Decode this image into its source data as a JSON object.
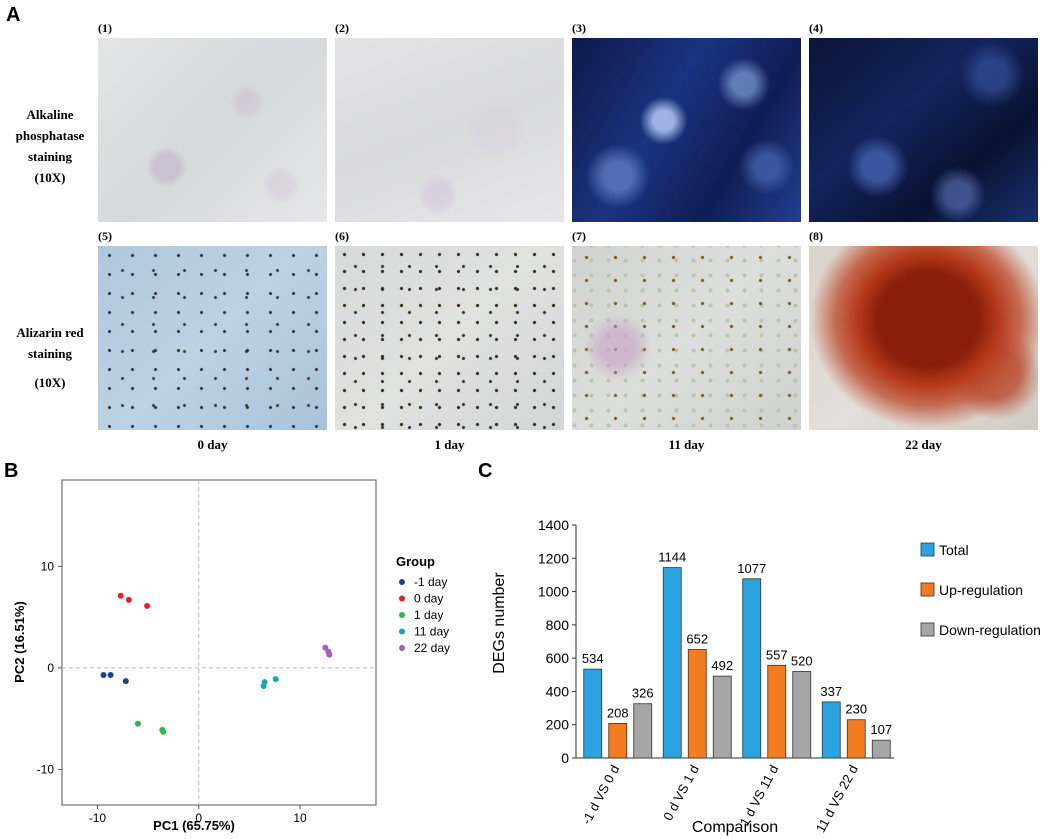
{
  "panel_a": {
    "letter": "A",
    "images": [
      {
        "num": "(1)",
        "stain": "alp",
        "day_index": 0
      },
      {
        "num": "(2)",
        "stain": "alp",
        "day_index": 1
      },
      {
        "num": "(3)",
        "stain": "alp",
        "day_index": 2
      },
      {
        "num": "(4)",
        "stain": "alp",
        "day_index": 3
      },
      {
        "num": "(5)",
        "stain": "ars",
        "day_index": 0
      },
      {
        "num": "(6)",
        "stain": "ars",
        "day_index": 1
      },
      {
        "num": "(7)",
        "stain": "ars",
        "day_index": 2
      },
      {
        "num": "(8)",
        "stain": "ars",
        "day_index": 3
      }
    ],
    "row_labels": [
      {
        "line1": "Alkaline",
        "line2": "phosphatase",
        "line3": "staining",
        "line4": "(10X)"
      },
      {
        "line1": "Alizarin red",
        "line2": "staining",
        "line3": "(10X)"
      }
    ],
    "day_labels": [
      "0 day",
      "1 day",
      "11 day",
      "22 day"
    ]
  },
  "chart_data": [
    {
      "type": "scatter",
      "panel": "B",
      "xlabel": "PC1 (65.75%)",
      "ylabel": "PC2 (16.51%)",
      "xlim": [
        -13.5,
        17.5
      ],
      "ylim": [
        -13.5,
        18.5
      ],
      "xticks": [
        -10,
        0,
        10
      ],
      "yticks": [
        -10,
        0,
        10
      ],
      "reference_lines": {
        "x": 0,
        "y": 0,
        "style": "dashed"
      },
      "legend": {
        "title": "Group",
        "placement": "right"
      },
      "series": [
        {
          "name": "-1 day",
          "color": "#1f3f8f",
          "points": [
            [
              -9.4,
              -0.7
            ],
            [
              -8.7,
              -0.7
            ],
            [
              -7.2,
              -1.3
            ]
          ]
        },
        {
          "name": "0 day",
          "color": "#e8202a",
          "points": [
            [
              -7.7,
              7.1
            ],
            [
              -6.9,
              6.7
            ],
            [
              -5.1,
              6.1
            ]
          ]
        },
        {
          "name": "1 day",
          "color": "#2fb54a",
          "points": [
            [
              -6.0,
              -5.5
            ],
            [
              -3.6,
              -6.1
            ],
            [
              -3.5,
              -6.3
            ]
          ]
        },
        {
          "name": "11 day",
          "color": "#1aa6b7",
          "points": [
            [
              6.4,
              -1.8
            ],
            [
              6.5,
              -1.4
            ],
            [
              7.6,
              -1.1
            ]
          ]
        },
        {
          "name": "22 day",
          "color": "#a65fc0",
          "points": [
            [
              12.5,
              2.0
            ],
            [
              12.8,
              1.6
            ],
            [
              12.9,
              1.3
            ]
          ]
        }
      ]
    },
    {
      "type": "bar",
      "panel": "C",
      "xlabel": "Comparison",
      "ylabel": "DEGs number",
      "ylim": [
        0,
        1400
      ],
      "yticks": [
        0,
        200,
        400,
        600,
        800,
        1000,
        1200,
        1400
      ],
      "categories": [
        "-1 d VS 0 d",
        "0 d VS 1 d",
        "1 d VS 11 d",
        "11 d VS 22 d"
      ],
      "legend_placement": "right",
      "series": [
        {
          "name": "Total",
          "color": "#2ba3e0",
          "values": [
            534,
            1144,
            1077,
            337
          ]
        },
        {
          "name": "Up-regulation",
          "color": "#f47c20",
          "values": [
            208,
            652,
            557,
            230
          ]
        },
        {
          "name": "Down-regulation",
          "color": "#a6a6a6",
          "values": [
            326,
            492,
            520,
            107
          ]
        }
      ]
    }
  ],
  "labels": {
    "panel_b_letter": "B",
    "panel_c_letter": "C"
  }
}
